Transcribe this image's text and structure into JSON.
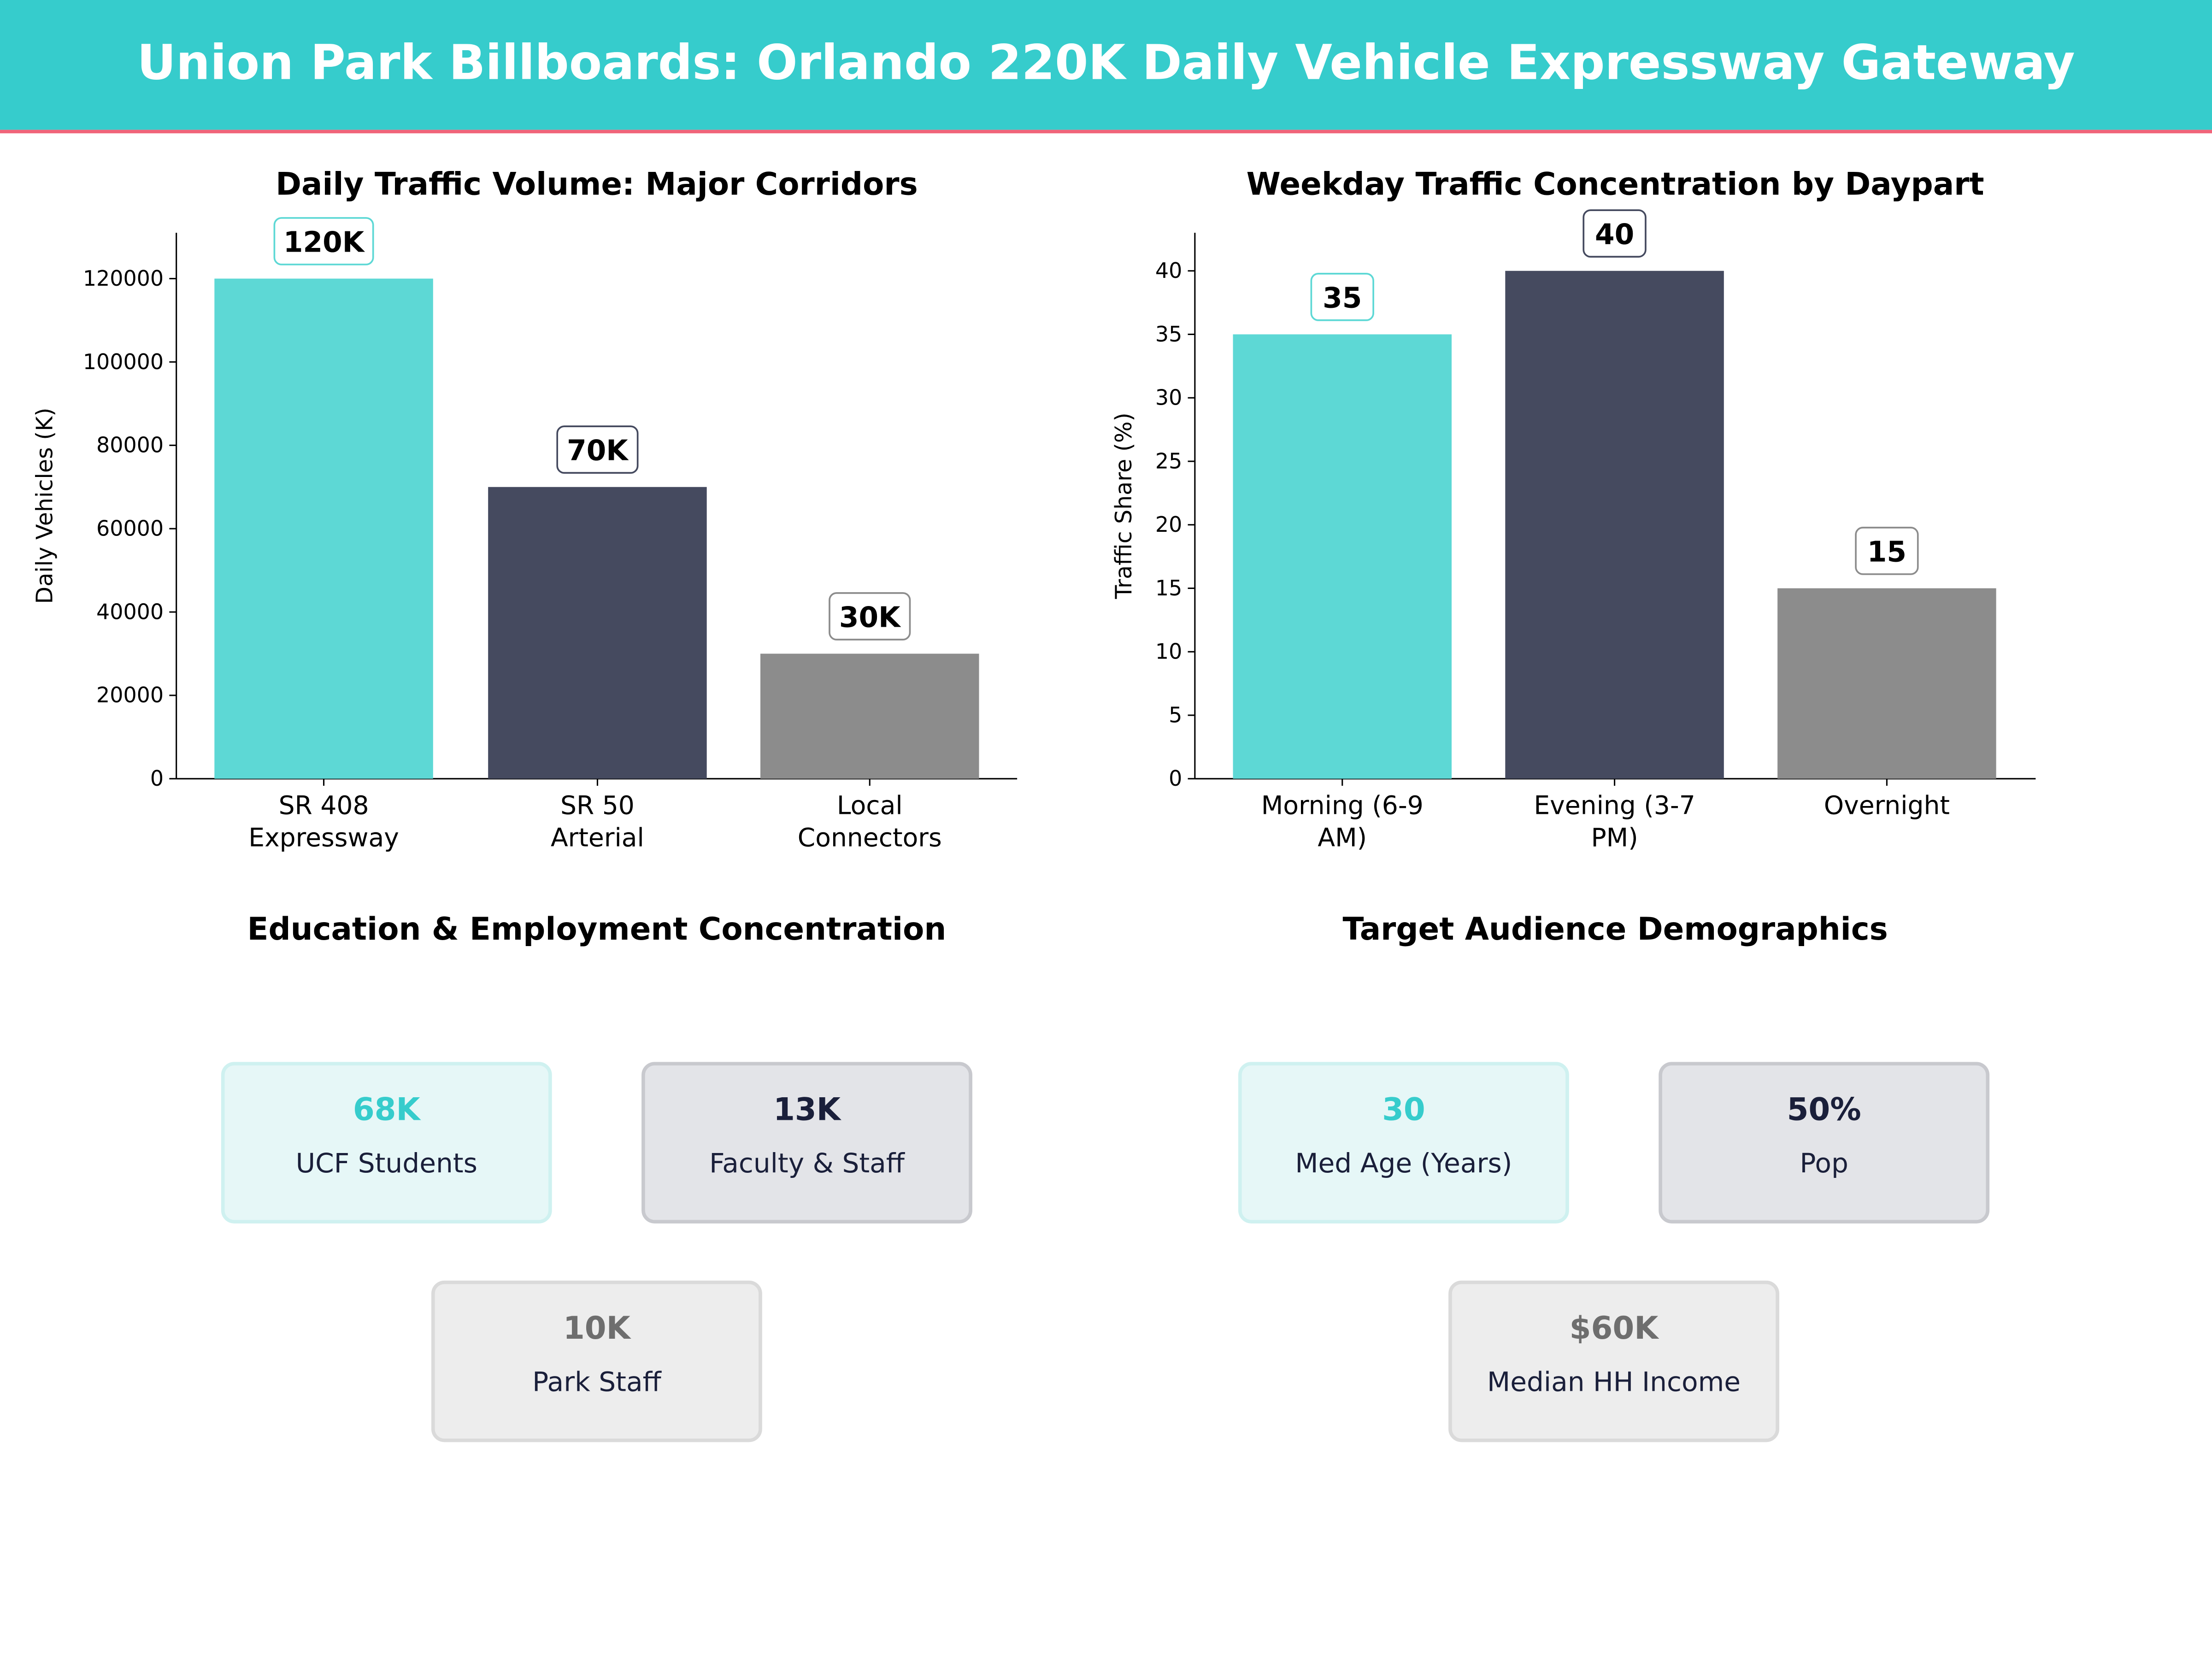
{
  "header": {
    "title": "Union Park Billboards: Orlando 220K Daily Vehicle Expressway Gateway",
    "bg": "#36CCCC",
    "accent_line": "#F0647A"
  },
  "chart_data": [
    {
      "type": "bar",
      "title": "Daily Traffic Volume: Major Corridors",
      "xlabel": "",
      "ylabel": "Daily Vehicles (K)",
      "categories": [
        [
          "SR 408",
          "Expressway"
        ],
        [
          "SR 50",
          "Arterial"
        ],
        [
          "Local",
          "Connectors"
        ]
      ],
      "values": [
        120000,
        70000,
        30000
      ],
      "data_labels": [
        "120K",
        "70K",
        "30K"
      ],
      "colors": [
        "#5DD8D5",
        "#454A5F",
        "#8C8C8C"
      ],
      "ylim": [
        0,
        131000
      ],
      "yticks": [
        0,
        20000,
        40000,
        60000,
        80000,
        100000,
        120000
      ],
      "grid": false
    },
    {
      "type": "bar",
      "title": "Weekday Traffic Concentration by Daypart",
      "xlabel": "",
      "ylabel": "Traffic Share (%)",
      "categories": [
        [
          "Morning (6-9",
          "AM)"
        ],
        [
          "Evening (3-7",
          "PM)"
        ],
        [
          "Overnight"
        ]
      ],
      "values": [
        35,
        40,
        15
      ],
      "data_labels": [
        "35",
        "40",
        "15"
      ],
      "colors": [
        "#5DD8D5",
        "#454A5F",
        "#8C8C8C"
      ],
      "ylim": [
        0,
        43
      ],
      "yticks": [
        0,
        5,
        10,
        15,
        20,
        25,
        30,
        35,
        40
      ],
      "grid": false
    }
  ],
  "panels": [
    {
      "title": "Education & Employment Concentration",
      "cards": [
        {
          "value": "68K",
          "label": "UCF Students",
          "style": "teal"
        },
        {
          "value": "13K",
          "label": "Faculty & Staff",
          "style": "dark"
        },
        {
          "value": "10K",
          "label": "Park Staff",
          "style": "gray"
        }
      ]
    },
    {
      "title": "Target Audience Demographics",
      "cards": [
        {
          "value": "30",
          "label": "Med Age (Years)",
          "style": "teal"
        },
        {
          "value": "50%",
          "label": "Pop",
          "style": "dark"
        },
        {
          "value": "$60K",
          "label": "Median HH Income",
          "style": "gray"
        }
      ]
    }
  ],
  "card_styles": {
    "teal": {
      "bg": "#E6F7F7",
      "border": "#CFF1F0",
      "value": "#36CCCC"
    },
    "dark": {
      "bg": "#E3E4E8",
      "border": "#C8C9CE",
      "value": "#1A1F3A"
    },
    "gray": {
      "bg": "#EDEDED",
      "border": "#DADADA",
      "value": "#6E6E6E"
    }
  }
}
